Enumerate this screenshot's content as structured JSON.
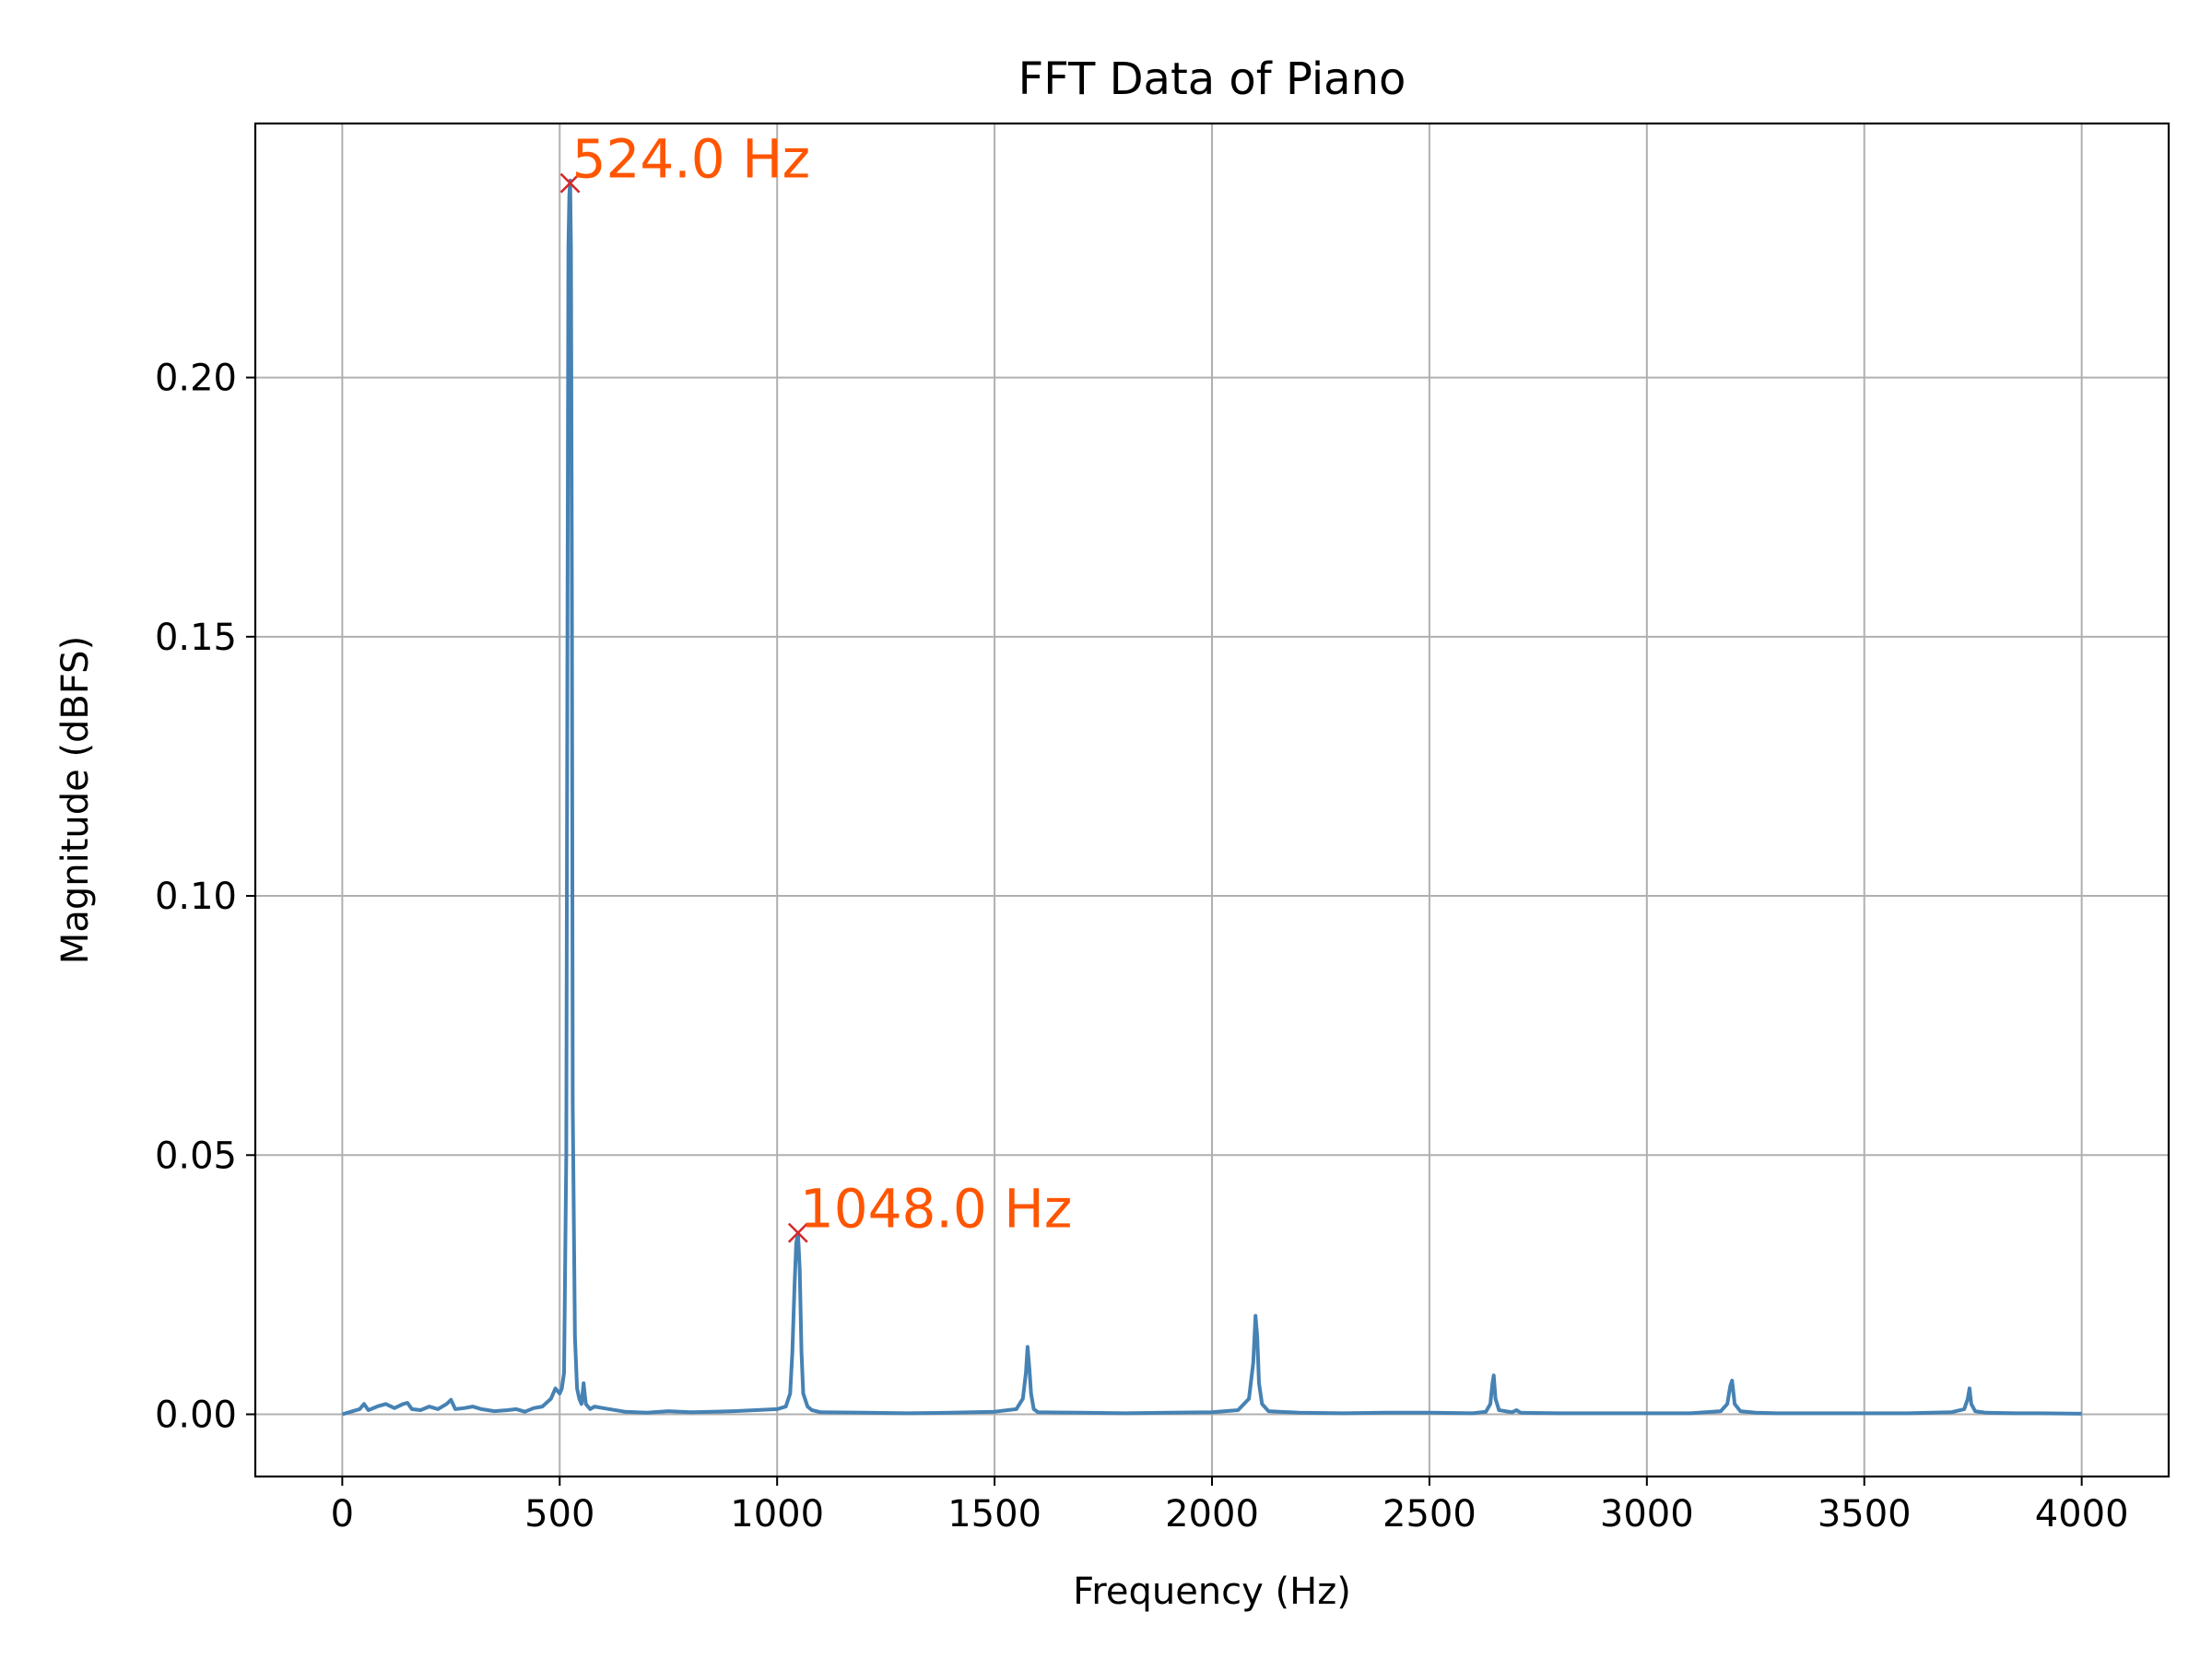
{
  "chart_data": {
    "type": "line",
    "title": "FFT Data of Piano",
    "xlabel": "Frequency (Hz)",
    "ylabel": "Magnitude (dBFS)",
    "xlim": [
      -200,
      4200
    ],
    "ylim": [
      -0.012,
      0.249
    ],
    "xticks": [
      0,
      500,
      1000,
      1500,
      2000,
      2500,
      3000,
      3500,
      4000
    ],
    "xtick_labels": [
      "0",
      "500",
      "1000",
      "1500",
      "2000",
      "2500",
      "3000",
      "3500",
      "4000"
    ],
    "yticks": [
      0.0,
      0.05,
      0.1,
      0.15,
      0.2
    ],
    "ytick_labels": [
      "0.00",
      "0.05",
      "0.10",
      "0.15",
      "0.20"
    ],
    "grid": true,
    "legend": "none",
    "colors": {
      "line": "#4682b4",
      "marker": "#d62728",
      "annotation": "#ff5500",
      "grid": "#b0b0b0"
    },
    "series": [
      {
        "x": [
          0,
          20,
          40,
          50,
          60,
          80,
          100,
          120,
          140,
          150,
          160,
          180,
          200,
          220,
          240,
          250,
          260,
          280,
          300,
          320,
          350,
          380,
          400,
          420,
          440,
          460,
          480,
          490,
          500,
          505,
          510,
          515,
          518,
          520,
          522,
          524,
          526,
          528,
          530,
          535,
          540,
          545,
          550,
          555,
          560,
          570,
          580,
          600,
          650,
          700,
          750,
          800,
          900,
          950,
          1000,
          1020,
          1030,
          1035,
          1040,
          1044,
          1048,
          1052,
          1056,
          1060,
          1070,
          1080,
          1100,
          1200,
          1300,
          1400,
          1500,
          1550,
          1565,
          1572,
          1576,
          1580,
          1584,
          1590,
          1600,
          1700,
          1800,
          1900,
          2000,
          2060,
          2085,
          2095,
          2100,
          2104,
          2108,
          2115,
          2130,
          2200,
          2300,
          2400,
          2500,
          2600,
          2630,
          2640,
          2645,
          2648,
          2652,
          2660,
          2690,
          2700,
          2710,
          2800,
          2900,
          3000,
          3100,
          3170,
          3185,
          3192,
          3196,
          3202,
          3215,
          3250,
          3300,
          3400,
          3500,
          3600,
          3700,
          3730,
          3738,
          3742,
          3746,
          3755,
          3780,
          3850,
          3900,
          4000
        ],
        "y": [
          0.0,
          0.0005,
          0.001,
          0.002,
          0.0008,
          0.0015,
          0.002,
          0.0012,
          0.002,
          0.0022,
          0.001,
          0.0008,
          0.0015,
          0.001,
          0.002,
          0.0028,
          0.001,
          0.0012,
          0.0015,
          0.001,
          0.0006,
          0.0008,
          0.001,
          0.0005,
          0.0012,
          0.0015,
          0.003,
          0.005,
          0.004,
          0.005,
          0.008,
          0.05,
          0.16,
          0.225,
          0.235,
          0.238,
          0.225,
          0.16,
          0.06,
          0.015,
          0.005,
          0.003,
          0.002,
          0.006,
          0.002,
          0.001,
          0.0015,
          0.0012,
          0.0005,
          0.0003,
          0.0006,
          0.0004,
          0.0006,
          0.0008,
          0.001,
          0.0015,
          0.004,
          0.012,
          0.025,
          0.033,
          0.035,
          0.028,
          0.012,
          0.004,
          0.0015,
          0.0008,
          0.0004,
          0.0003,
          0.0002,
          0.0003,
          0.0005,
          0.001,
          0.003,
          0.008,
          0.013,
          0.009,
          0.004,
          0.001,
          0.0004,
          0.0003,
          0.0002,
          0.0003,
          0.0004,
          0.0008,
          0.003,
          0.01,
          0.019,
          0.015,
          0.006,
          0.002,
          0.0006,
          0.0003,
          0.0002,
          0.0003,
          0.0003,
          0.0002,
          0.0005,
          0.002,
          0.006,
          0.0075,
          0.003,
          0.0008,
          0.0004,
          0.0008,
          0.0003,
          0.0002,
          0.0002,
          0.0002,
          0.0002,
          0.0006,
          0.002,
          0.0055,
          0.0065,
          0.002,
          0.0006,
          0.0003,
          0.0002,
          0.0002,
          0.0002,
          0.0002,
          0.0004,
          0.001,
          0.003,
          0.005,
          0.002,
          0.0006,
          0.0003,
          0.0002,
          0.0002,
          0.0001
        ]
      }
    ],
    "peaks": [
      {
        "x": 524.0,
        "y": 0.2375,
        "label": "524.0 Hz"
      },
      {
        "x": 1048.0,
        "y": 0.035,
        "label": "1048.0 Hz"
      }
    ]
  }
}
